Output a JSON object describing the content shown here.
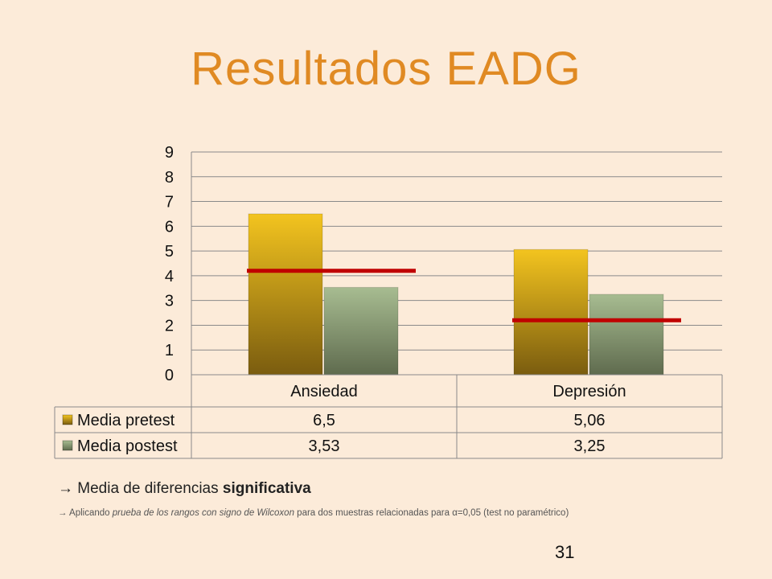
{
  "slide": {
    "title": "Resultados EADG",
    "page_number": "31"
  },
  "note": {
    "arrow": "→",
    "main_text": "Media de diferencias ",
    "main_bold": "significativa",
    "sub_arrow": "→",
    "sub_1": " Aplicando ",
    "sub_2_italic": "prueba de los rangos con signo de Wilcoxon",
    "sub_3": " para dos muestras relacionadas para α=0,05 (test no paramétrico)"
  },
  "colors": {
    "pretest_top": "#f3c41f",
    "pretest_bottom": "#7a5c0f",
    "postest_top": "#a7bc91",
    "postest_bottom": "#5f6b4e",
    "significance_line": "#c00000",
    "grid": "#8a8a8a",
    "title": "#e08a23"
  },
  "chart_data": {
    "type": "bar",
    "categories": [
      "Ansiedad",
      "Depresión"
    ],
    "series": [
      {
        "name": "Media pretest",
        "values": [
          6.5,
          5.06
        ],
        "labels": [
          "6,5",
          "5,06"
        ]
      },
      {
        "name": "Media postest",
        "values": [
          3.53,
          3.25
        ],
        "labels": [
          "3,53",
          "3,25"
        ]
      }
    ],
    "yticks": [
      "0",
      "1",
      "2",
      "3",
      "4",
      "5",
      "6",
      "7",
      "8",
      "9"
    ],
    "ylim": [
      0,
      9
    ],
    "grid": true,
    "data_table": true,
    "difference_lines": [
      {
        "category": "Ansiedad",
        "value": 4.2
      },
      {
        "category": "Depresión",
        "value": 2.2
      }
    ]
  }
}
